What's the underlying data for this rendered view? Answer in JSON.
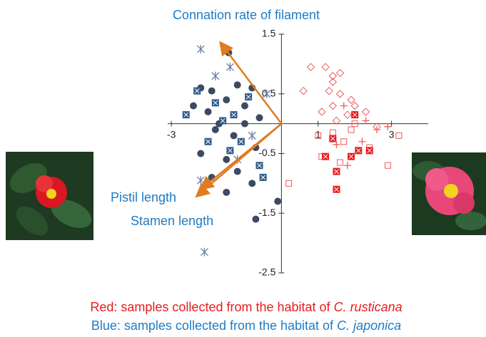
{
  "chart_data": {
    "type": "scatter",
    "xlim": [
      -3.1,
      4.0
    ],
    "ylim": [
      -2.5,
      1.5
    ],
    "xticks": [
      -3,
      1,
      3
    ],
    "yticks": [
      1.5,
      0.5,
      -0.5,
      -1.5,
      -2.5
    ],
    "series": [
      {
        "color": "#3d4a63",
        "marker": "circle",
        "x": [
          -1.44,
          -2.2,
          -1.9,
          -1.2,
          -0.8,
          -1.5,
          -2.0,
          -1.0,
          -0.6,
          -1.8,
          -1.3,
          -0.7,
          -1.5,
          -2.2,
          -1.9,
          -1.5,
          -1.2,
          -0.8,
          -0.1,
          -0.7,
          -1.0,
          -1.7,
          -2.4
        ],
        "values": [
          1.19,
          0.6,
          0.55,
          0.65,
          0.6,
          0.4,
          0.2,
          0.3,
          0.1,
          -0.1,
          -0.2,
          -0.4,
          -0.6,
          -0.5,
          -0.9,
          -1.15,
          -0.8,
          -1.0,
          -1.3,
          -1.6,
          0.0,
          0.0,
          0.3
        ]
      },
      {
        "color": "#2e5c8a",
        "marker": "square-x",
        "x": [
          -2.6,
          -2.3,
          -1.6,
          -1.3,
          -1.1,
          -0.6,
          -0.9,
          -1.4,
          -2.0,
          -0.5,
          -1.8
        ],
        "values": [
          0.15,
          0.55,
          0.05,
          0.15,
          -0.3,
          -0.7,
          0.45,
          -0.45,
          -0.3,
          -0.9,
          0.35
        ]
      },
      {
        "color": "#6a7fa0",
        "marker": "asterisk",
        "x": [
          -2.2,
          -1.4,
          -1.8,
          -2.2,
          -2.1,
          -1.2,
          -0.4,
          -0.8
        ],
        "values": [
          1.25,
          0.95,
          0.8,
          -0.95,
          -2.15,
          -0.6,
          0.5,
          -0.2
        ]
      },
      {
        "color": "#f05a5a",
        "marker": "diamond-open",
        "x": [
          0.8,
          1.2,
          1.4,
          1.6,
          0.6,
          1.3,
          1.6,
          1.9,
          1.4,
          2.3,
          1.8,
          1.1,
          1.5,
          2.0,
          2.6,
          1.4
        ],
        "values": [
          0.95,
          0.95,
          0.8,
          0.85,
          0.55,
          0.55,
          0.5,
          0.4,
          0.3,
          0.2,
          0.15,
          0.2,
          0.05,
          0.3,
          -0.05,
          0.7
        ]
      },
      {
        "color": "#f05a5a",
        "marker": "square-open",
        "x": [
          1.0,
          1.4,
          1.7,
          2.0,
          2.4,
          1.6,
          1.1,
          3.2,
          2.9,
          0.2,
          1.9
        ],
        "values": [
          -0.2,
          -0.15,
          -0.3,
          0.0,
          -0.4,
          -0.65,
          -0.55,
          -0.2,
          -0.7,
          -1.0,
          -0.1
        ]
      },
      {
        "color": "#e81c1c",
        "marker": "square-filled",
        "x": [
          1.4,
          1.2,
          1.5,
          2.1,
          2.4,
          1.5,
          2.0,
          1.9
        ],
        "values": [
          -0.25,
          -0.55,
          -0.8,
          -0.45,
          -0.45,
          -1.1,
          0.15,
          -0.55
        ]
      },
      {
        "color": "#f05a5a",
        "marker": "cross",
        "x": [
          2.3,
          2.6,
          1.8,
          2.2,
          2.9,
          1.5,
          1.7
        ],
        "values": [
          0.05,
          -0.1,
          -0.7,
          -0.3,
          -0.05,
          -0.35,
          0.3
        ]
      }
    ],
    "vectors": [
      {
        "label": "Connation rate of  filament",
        "x": -1.64,
        "y": 1.34
      },
      {
        "label": "Pistil length",
        "x": -2.28,
        "y": -1.2
      },
      {
        "label": "Stamen length",
        "x": -2.16,
        "y": -1.08
      }
    ],
    "vector_color": "#e07b20"
  },
  "captions": [
    {
      "text": "Red: samples collected from the habitat of ",
      "species": "C. rusticana",
      "color": "#e81c1c"
    },
    {
      "text": "Blue: samples collected from the habitat of ",
      "species": "C. japonica",
      "color": "#1f7bc4"
    }
  ]
}
